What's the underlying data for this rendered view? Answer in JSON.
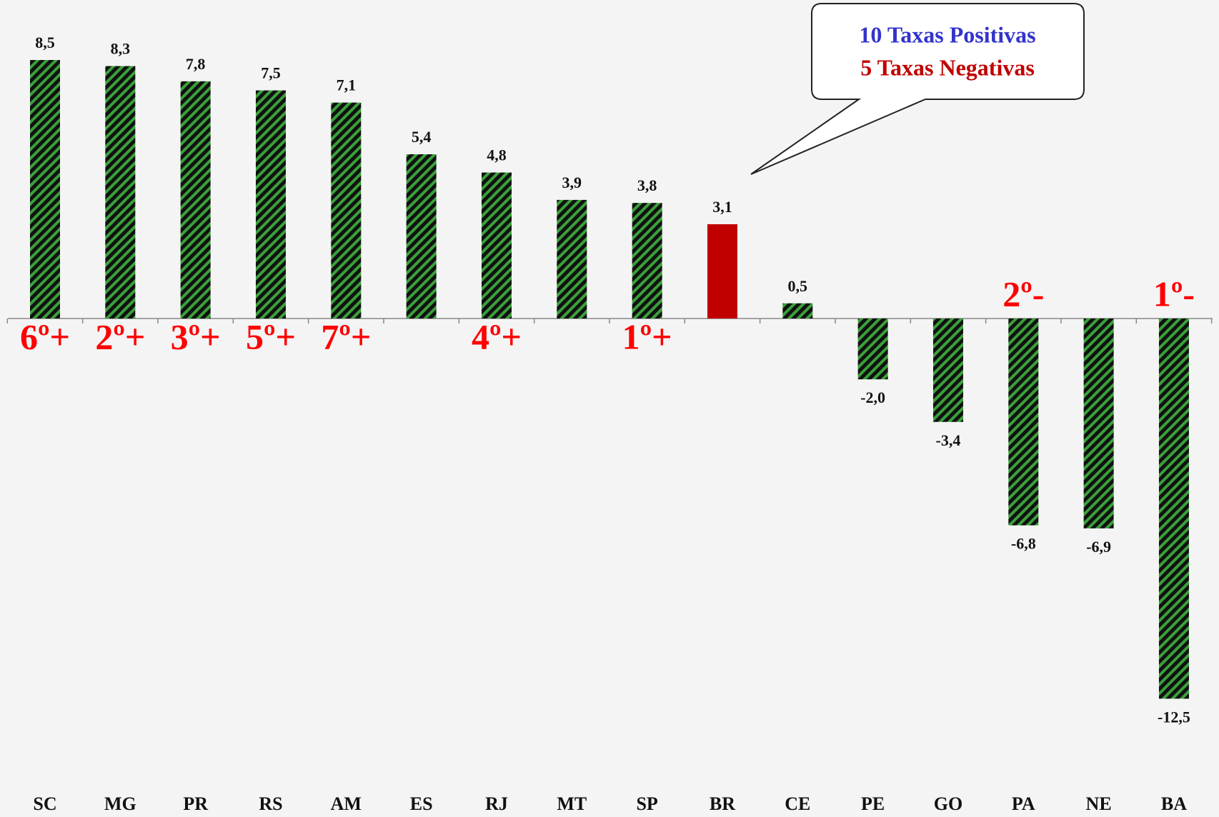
{
  "chart_data": {
    "type": "bar",
    "categories": [
      "SC",
      "MG",
      "PR",
      "RS",
      "AM",
      "ES",
      "RJ",
      "MT",
      "SP",
      "BR",
      "CE",
      "PE",
      "GO",
      "PA",
      "NE",
      "BA"
    ],
    "values": [
      8.5,
      8.3,
      7.8,
      7.5,
      7.1,
      5.4,
      4.8,
      3.9,
      3.8,
      3.1,
      0.5,
      -2.0,
      -3.4,
      -6.8,
      -6.9,
      -12.5
    ],
    "value_labels": [
      "8,5",
      "8,3",
      "7,8",
      "7,5",
      "7,1",
      "5,4",
      "4,8",
      "3,9",
      "3,8",
      "3,1",
      "0,5",
      "-2,0",
      "-3,4",
      "-6,8",
      "-6,9",
      "-12,5"
    ],
    "colors": [
      "hatch",
      "hatch",
      "hatch",
      "hatch",
      "hatch",
      "hatch",
      "hatch",
      "hatch",
      "hatch",
      "#c00000",
      "hatch",
      "hatch",
      "hatch",
      "hatch",
      "hatch",
      "hatch"
    ],
    "rank_labels": [
      "6º+",
      "2º+",
      "3º+",
      "5º+",
      "7º+",
      null,
      "4º+",
      null,
      "1º+",
      null,
      null,
      null,
      null,
      "2º-",
      null,
      "1º-"
    ],
    "callout": [
      {
        "text": "10 Taxas Positivas",
        "color": "#3333cc"
      },
      {
        "text": "5 Taxas Negativas",
        "color": "#c00000"
      }
    ]
  }
}
